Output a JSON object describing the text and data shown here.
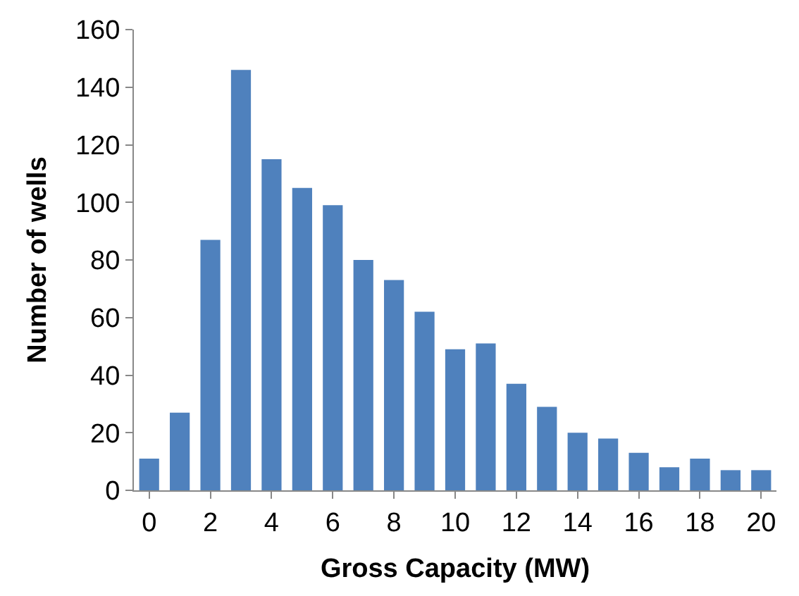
{
  "chart_data": {
    "type": "bar",
    "xlabel": "Gross Capacity (MW)",
    "ylabel": "Number of wells",
    "categories": [
      "0",
      null,
      "2",
      null,
      "4",
      null,
      "6",
      null,
      "8",
      null,
      "10",
      null,
      "12",
      null,
      "14",
      null,
      "16",
      null,
      "18",
      null,
      "20"
    ],
    "values": [
      11,
      27,
      87,
      146,
      115,
      105,
      99,
      80,
      73,
      62,
      49,
      51,
      37,
      29,
      20,
      18,
      13,
      8,
      11,
      7,
      7
    ],
    "color": "#4f81bd",
    "ylim": [
      0,
      160
    ],
    "yticks": [
      0,
      20,
      40,
      60,
      80,
      100,
      120,
      140,
      160
    ],
    "legend": false
  }
}
